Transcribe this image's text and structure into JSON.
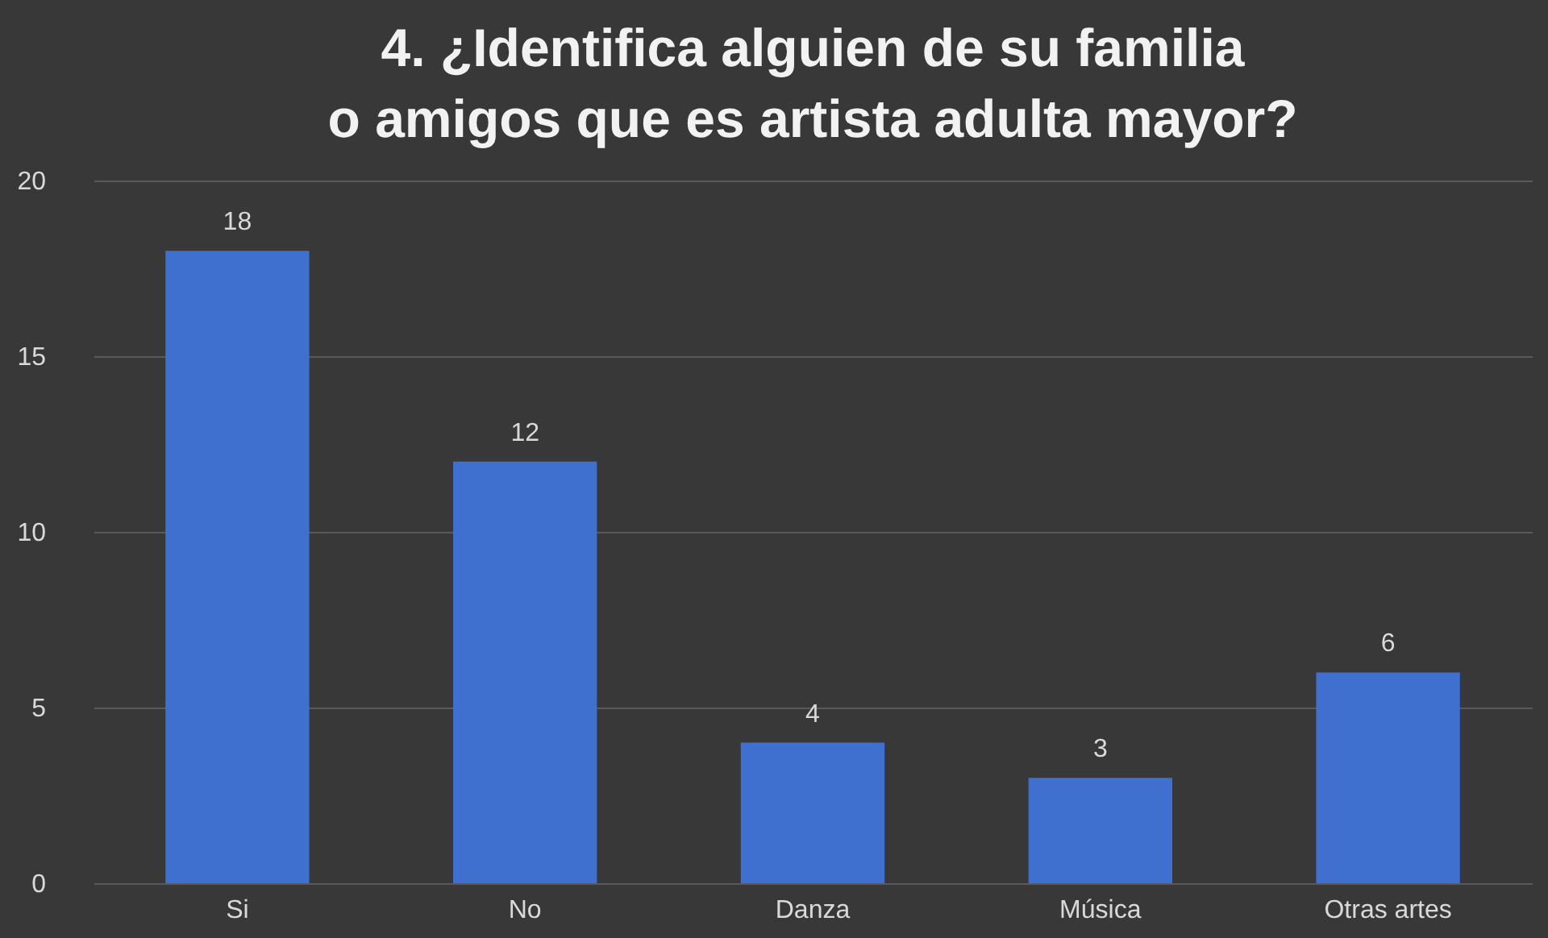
{
  "chart_data": {
    "type": "bar",
    "title": "4.    ¿Identifica alguien de su familia o amigos que es artista adulta mayor?",
    "categories": [
      "Si",
      "No",
      "Danza",
      "Música",
      "Otras artes"
    ],
    "values": [
      18,
      12,
      4,
      3,
      6
    ],
    "color": "#3f6fcf",
    "ylim": [
      0,
      20
    ],
    "yticks": [
      0,
      5,
      10,
      15,
      20
    ],
    "grid": "y",
    "data_labels": true
  }
}
